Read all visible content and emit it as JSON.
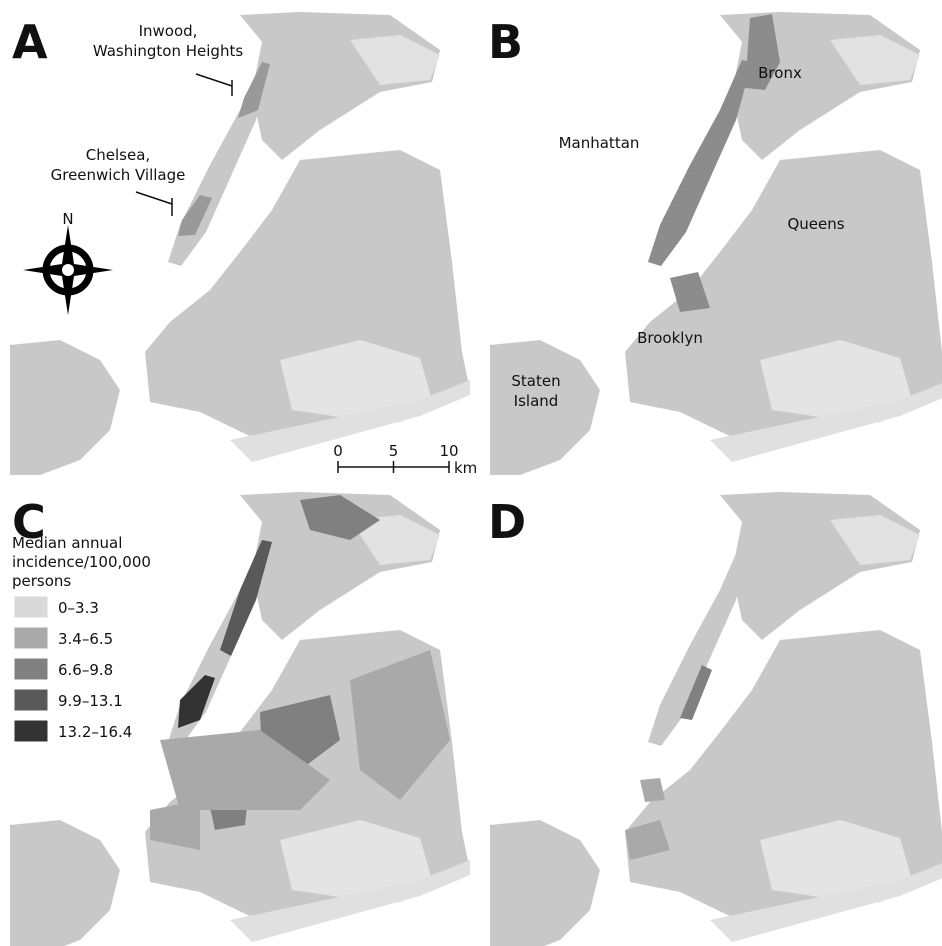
{
  "panels": [
    {
      "label": "A",
      "annotations": [
        {
          "lines": [
            "Inwood,",
            "Washington Heights"
          ]
        },
        {
          "lines": [
            "Chelsea,",
            "Greenwich Village"
          ]
        }
      ],
      "compass": "N",
      "scale_bar": {
        "ticks": [
          0,
          5,
          10
        ],
        "unit": "km"
      }
    },
    {
      "label": "B",
      "places": [
        {
          "lines": [
            "Bronx"
          ]
        },
        {
          "lines": [
            "Manhattan"
          ]
        },
        {
          "lines": [
            "Queens"
          ]
        },
        {
          "lines": [
            "Brooklyn"
          ]
        },
        {
          "lines": [
            "Staten",
            "Island"
          ]
        }
      ]
    },
    {
      "label": "C",
      "legend": {
        "title_lines": [
          "Median annual",
          "incidence/100,000",
          "persons"
        ],
        "items": [
          {
            "label": "0–3.3",
            "color": "#d9d9d9"
          },
          {
            "label": "3.4–6.5",
            "color": "#a9a9a9"
          },
          {
            "label": "6.6–9.8",
            "color": "#808080"
          },
          {
            "label": "9.9–13.1",
            "color": "#595959"
          },
          {
            "label": "13.2–16.4",
            "color": "#333333"
          }
        ]
      }
    },
    {
      "label": "D"
    }
  ]
}
